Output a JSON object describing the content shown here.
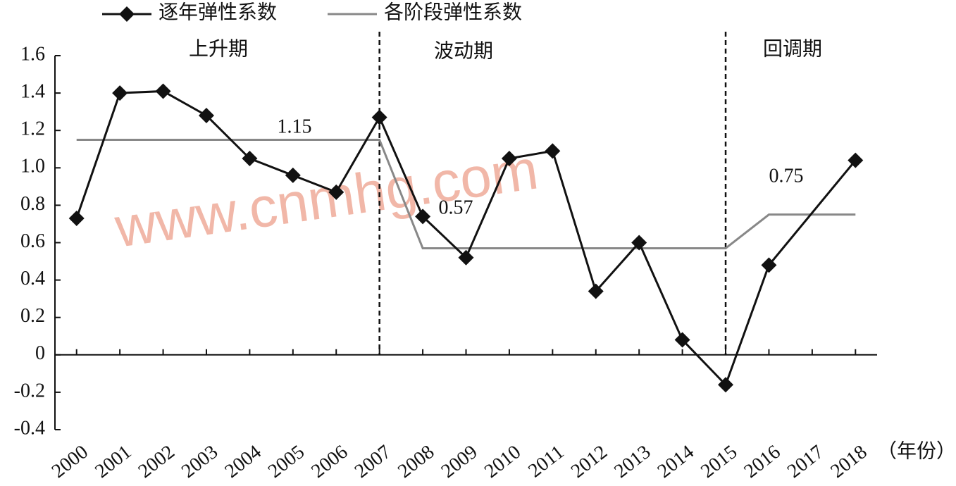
{
  "chart_data": {
    "type": "line",
    "xlim": [
      1999.5,
      2018.5
    ],
    "xticks": [
      2000,
      2001,
      2002,
      2003,
      2004,
      2005,
      2006,
      2007,
      2008,
      2009,
      2010,
      2011,
      2012,
      2013,
      2014,
      2015,
      2016,
      2017,
      2018
    ],
    "x_unit": "（年份）",
    "ylim": [
      -0.4,
      1.6
    ],
    "yticks": [
      -0.4,
      -0.2,
      0,
      0.2,
      0.4,
      0.6,
      0.8,
      {
        "value": 1,
        "label": "1.0"
      },
      1.2,
      1.4,
      1.6
    ],
    "series": [
      {
        "name": "逐年弹性系数",
        "color": "#111111",
        "marker": "diamond",
        "x": [
          2000,
          2001,
          2002,
          2003,
          2004,
          2005,
          2006,
          2007,
          2008,
          2009,
          2010,
          2011,
          2012,
          2013,
          2014,
          2015,
          2016,
          2018
        ],
        "values": [
          0.73,
          1.4,
          1.41,
          1.28,
          1.05,
          0.96,
          0.87,
          1.27,
          0.74,
          0.52,
          1.05,
          1.09,
          0.34,
          0.6,
          0.08,
          -0.16,
          0.48,
          1.04
        ]
      },
      {
        "name": "各阶段弹性系数",
        "color": "#888888",
        "marker": "none",
        "x": [
          2000,
          2007,
          2008,
          2015,
          2016,
          2018
        ],
        "values": [
          1.15,
          1.15,
          0.57,
          0.57,
          0.75,
          0.75
        ]
      }
    ],
    "dividers": [
      2007,
      2015
    ],
    "periods": [
      "上升期",
      "波动期",
      "回调期"
    ],
    "stage_labels": [
      "1.15",
      "0.57",
      "0.75"
    ],
    "watermark": "www.cnmhg.com"
  }
}
